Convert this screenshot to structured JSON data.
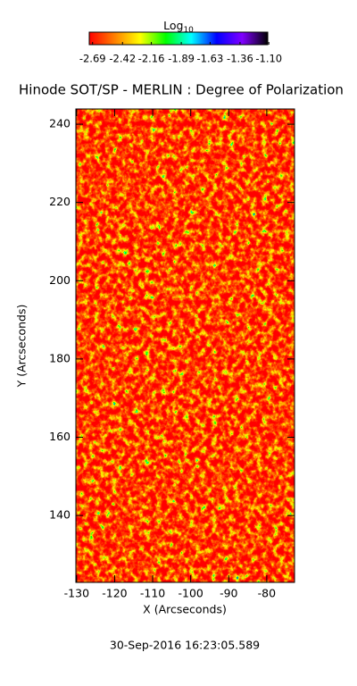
{
  "chart_data": {
    "type": "heatmap",
    "title": "Hinode SOT/SP - MERLIN : Degree of Polarization",
    "colorbar_label": "Log",
    "colorbar_label_sub": "10",
    "colormap": [
      "#ff0000",
      "#ff8000",
      "#ffff00",
      "#00ff00",
      "#00ffff",
      "#0000ff",
      "#8000ff",
      "#000000"
    ],
    "clim": [
      -2.72,
      -1.11
    ],
    "cticks": [
      -2.69,
      -2.42,
      -2.16,
      -1.89,
      -1.63,
      -1.36,
      {
        "value": -1.1,
        "label": "-1.10"
      }
    ],
    "x_label": "X (Arcseconds)",
    "y_label": "Y (Arcseconds)",
    "xlim": [
      -130.2,
      -72.7
    ],
    "xticks": [
      -130,
      -120,
      -110,
      -100,
      -90,
      -80
    ],
    "ylim": [
      122.9,
      243.9
    ],
    "yticks": [
      140,
      160,
      180,
      200,
      220,
      240
    ],
    "footer": "30-Sep-2016 16:23:05.589"
  }
}
